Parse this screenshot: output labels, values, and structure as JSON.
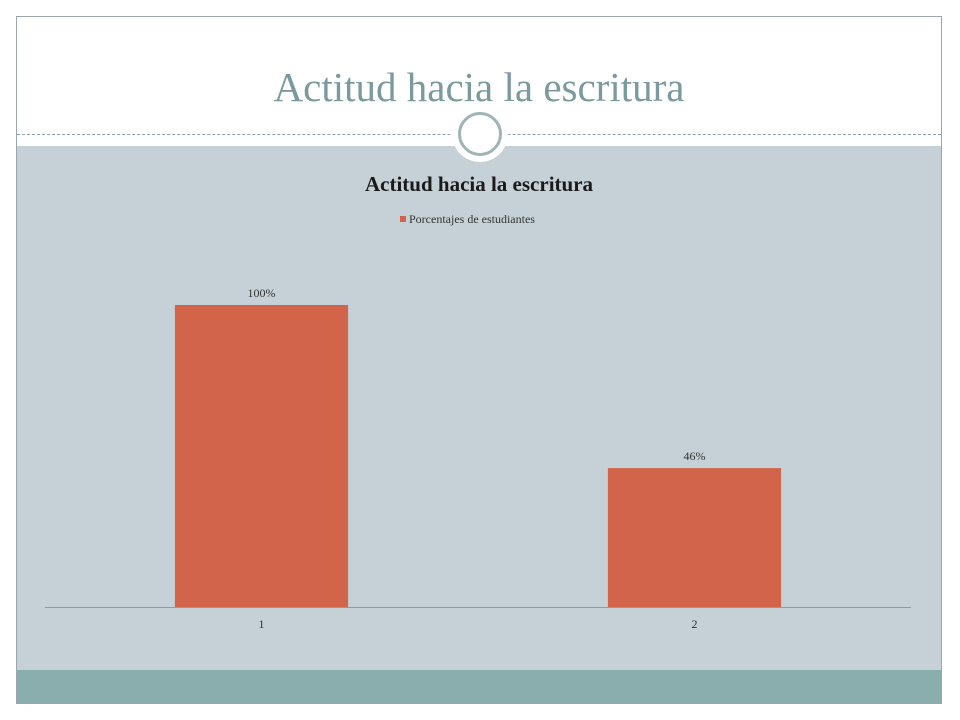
{
  "slide": {
    "title": "Actitud hacia la escritura"
  },
  "colors": {
    "title_text": "#7a9a9e",
    "content_band": "#c6d1d7",
    "footer_band": "#8aaeae",
    "bar": "#d2644a"
  },
  "chart_data": {
    "type": "bar",
    "title": "Actitud hacia la escritura",
    "categories": [
      "1",
      "2"
    ],
    "series": [
      {
        "name": "Porcentajes de estudiantes",
        "values": [
          100,
          46
        ],
        "labels": [
          "100%",
          "46%"
        ]
      }
    ],
    "ylim": [
      0,
      100
    ],
    "grid": false,
    "legend": "top-center",
    "xlabel": "",
    "ylabel": ""
  }
}
